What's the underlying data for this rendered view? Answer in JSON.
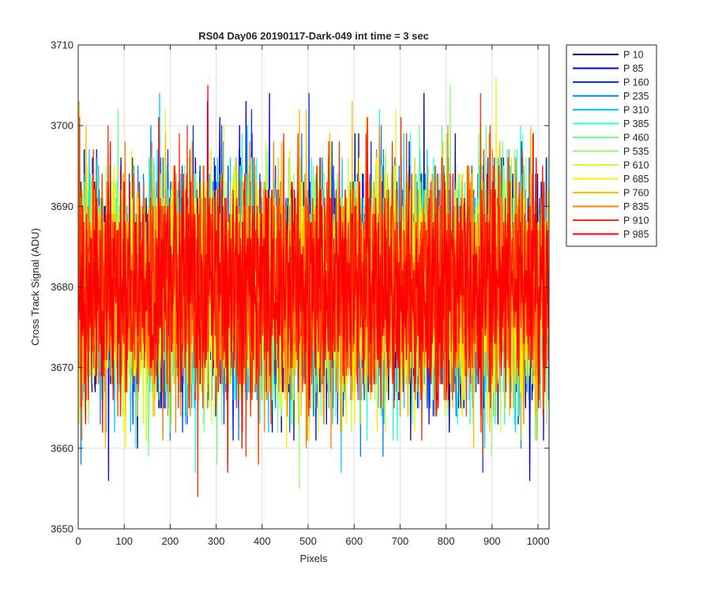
{
  "chart_data": {
    "type": "line",
    "title": "RS04 Day06 20190117-Dark-049 int time = 3 sec",
    "xlabel": "Pixels",
    "ylabel": "Cross Track Signal (ADU)",
    "xlim": [
      0,
      1024
    ],
    "ylim": [
      3650,
      3710
    ],
    "xticks": [
      0,
      100,
      200,
      300,
      400,
      500,
      600,
      700,
      800,
      900,
      1000
    ],
    "yticks": [
      3650,
      3660,
      3670,
      3680,
      3690,
      3700,
      3710
    ],
    "grid": true,
    "legend_position": "outside-top-right",
    "n_points": 1024,
    "series_mean": 3680,
    "series_noise_sd": 7,
    "series": [
      {
        "name": "P 10",
        "color": "#00008f",
        "seed": 10
      },
      {
        "name": "P 85",
        "color": "#0000df",
        "seed": 85
      },
      {
        "name": "P 160",
        "color": "#0030ff",
        "seed": 160
      },
      {
        "name": "P 235",
        "color": "#0080ff",
        "seed": 235
      },
      {
        "name": "P 310",
        "color": "#00cfff",
        "seed": 310
      },
      {
        "name": "P 385",
        "color": "#20ffdf",
        "seed": 385
      },
      {
        "name": "P 460",
        "color": "#70ff8f",
        "seed": 460
      },
      {
        "name": "P 535",
        "color": "#8fff70",
        "seed": 535
      },
      {
        "name": "P 610",
        "color": "#cfff30",
        "seed": 610
      },
      {
        "name": "P 685",
        "color": "#ffef00",
        "seed": 685
      },
      {
        "name": "P 760",
        "color": "#ffbf00",
        "seed": 760
      },
      {
        "name": "P 835",
        "color": "#ff8000",
        "seed": 835
      },
      {
        "name": "P 910",
        "color": "#ff3000",
        "seed": 910
      },
      {
        "name": "P 985",
        "color": "#ff0000",
        "seed": 985
      }
    ]
  }
}
